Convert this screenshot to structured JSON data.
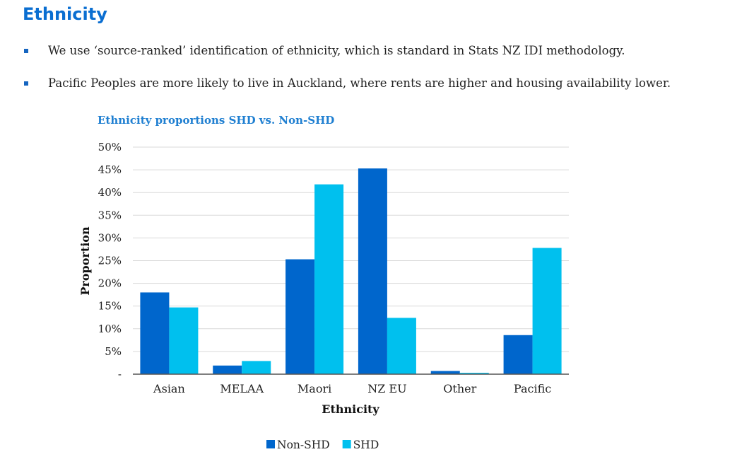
{
  "page": {
    "title": "Ethnicity",
    "bullets": [
      "We use ‘source-ranked’ identification of ethnicity, which is standard in Stats NZ IDI methodology.",
      "Pacific Peoples are more likely to live in Auckland, where rents are higher and housing availability lower."
    ]
  },
  "chart_data": {
    "type": "bar",
    "title": "Ethnicity proportions SHD vs. Non-SHD",
    "xlabel": "Ethnicity",
    "ylabel": "Proportion",
    "categories": [
      "Asian",
      "MELAA",
      "Maori",
      "NZ EU",
      "Other",
      "Pacific"
    ],
    "series": [
      {
        "name": "Non-SHD",
        "color": "#0066cc",
        "values": [
          18.0,
          1.9,
          25.3,
          45.3,
          0.7,
          8.6
        ]
      },
      {
        "name": "SHD",
        "color": "#00c0ee",
        "values": [
          14.7,
          2.9,
          41.8,
          12.4,
          0.3,
          27.8
        ]
      }
    ],
    "ylim": [
      0,
      50
    ],
    "yticks": [
      0,
      5,
      10,
      15,
      20,
      25,
      30,
      35,
      40,
      45,
      50
    ],
    "ytick_labels": [
      "-",
      "5%",
      "10%",
      "15%",
      "20%",
      "25%",
      "30%",
      "35%",
      "40%",
      "45%",
      "50%"
    ],
    "grid": true,
    "legend_position": "bottom-center"
  }
}
